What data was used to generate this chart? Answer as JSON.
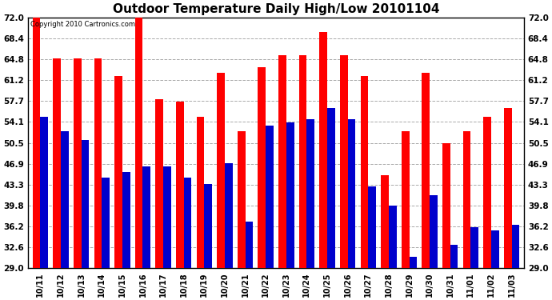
{
  "title": "Outdoor Temperature Daily High/Low 20101104",
  "copyright": "Copyright 2010 Cartronics.com",
  "dates": [
    "10/11",
    "10/12",
    "10/13",
    "10/14",
    "10/15",
    "10/16",
    "10/17",
    "10/18",
    "10/19",
    "10/20",
    "10/21",
    "10/22",
    "10/23",
    "10/24",
    "10/25",
    "10/26",
    "10/27",
    "10/28",
    "10/29",
    "10/30",
    "10/31",
    "11/01",
    "11/02",
    "11/03"
  ],
  "highs": [
    72.0,
    65.0,
    65.0,
    65.0,
    62.0,
    72.0,
    58.0,
    57.5,
    55.0,
    62.5,
    52.5,
    63.5,
    65.5,
    65.5,
    69.5,
    65.5,
    62.0,
    45.0,
    52.5,
    62.5,
    50.5,
    52.5,
    55.0,
    56.5
  ],
  "lows": [
    55.0,
    52.5,
    51.0,
    44.5,
    45.5,
    46.5,
    46.5,
    44.5,
    43.5,
    47.0,
    37.0,
    53.5,
    54.0,
    54.5,
    56.5,
    54.5,
    43.0,
    39.8,
    31.0,
    41.5,
    33.0,
    36.0,
    35.5,
    36.5
  ],
  "high_color": "#ff0000",
  "low_color": "#0000cc",
  "background_color": "#ffffff",
  "plot_bg_color": "#ffffff",
  "grid_color": "#aaaaaa",
  "ymin": 29.0,
  "ymax": 72.0,
  "yticks": [
    29.0,
    32.6,
    36.2,
    39.8,
    43.3,
    46.9,
    50.5,
    54.1,
    57.7,
    61.2,
    64.8,
    68.4,
    72.0
  ],
  "title_fontsize": 11,
  "bar_width": 0.38
}
